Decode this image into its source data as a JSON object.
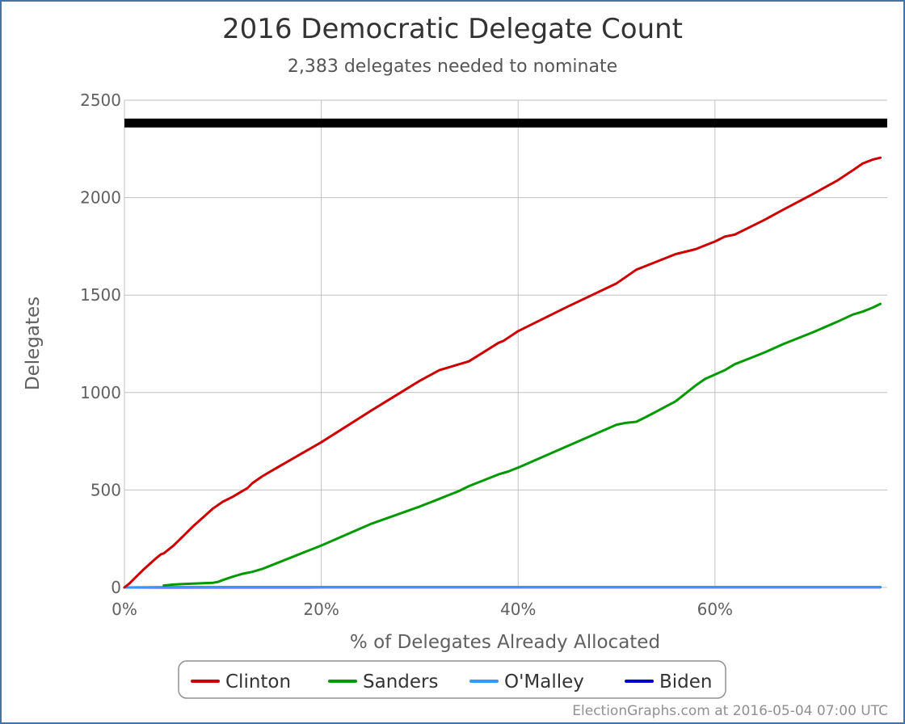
{
  "chart_data": {
    "type": "line",
    "title": "2016 Democratic Delegate Count",
    "subtitle": "2,383 delegates needed to nominate",
    "xlabel": "% of Delegates Already Allocated",
    "ylabel": "Delegates",
    "xlim": [
      0,
      77.5
    ],
    "ylim": [
      0,
      2500
    ],
    "x_ticks": [
      {
        "value": 0,
        "label": "0%"
      },
      {
        "value": 20,
        "label": "20%"
      },
      {
        "value": 40,
        "label": "40%"
      },
      {
        "value": 60,
        "label": "60%"
      }
    ],
    "y_ticks": [
      {
        "value": 0,
        "label": "0"
      },
      {
        "value": 500,
        "label": "500"
      },
      {
        "value": 1000,
        "label": "1000"
      },
      {
        "value": 1500,
        "label": "1500"
      },
      {
        "value": 2000,
        "label": "2000"
      },
      {
        "value": 2500,
        "label": "2500"
      }
    ],
    "grid": {
      "x": true,
      "y": true
    },
    "threshold": 2383,
    "threshold_color": "#000000",
    "legend_position": "bottom-center",
    "series": [
      {
        "name": "Clinton",
        "color": "#cc0000",
        "points": [
          [
            0,
            0
          ],
          [
            0.5,
            20
          ],
          [
            1,
            45
          ],
          [
            2,
            95
          ],
          [
            3,
            140
          ],
          [
            3.7,
            170
          ],
          [
            4,
            175
          ],
          [
            5,
            215
          ],
          [
            6,
            265
          ],
          [
            7,
            315
          ],
          [
            8,
            360
          ],
          [
            9,
            405
          ],
          [
            10,
            440
          ],
          [
            11,
            465
          ],
          [
            12,
            495
          ],
          [
            12.5,
            510
          ],
          [
            13,
            535
          ],
          [
            14,
            570
          ],
          [
            15,
            600
          ],
          [
            20,
            745
          ],
          [
            25,
            905
          ],
          [
            30,
            1060
          ],
          [
            32,
            1115
          ],
          [
            34,
            1145
          ],
          [
            35,
            1160
          ],
          [
            38,
            1255
          ],
          [
            38.5,
            1265
          ],
          [
            40,
            1315
          ],
          [
            45,
            1440
          ],
          [
            50,
            1560
          ],
          [
            52,
            1630
          ],
          [
            53,
            1650
          ],
          [
            56,
            1710
          ],
          [
            58,
            1735
          ],
          [
            60,
            1775
          ],
          [
            61,
            1800
          ],
          [
            62,
            1810
          ],
          [
            65,
            1885
          ],
          [
            67,
            1940
          ],
          [
            70,
            2020
          ],
          [
            72.5,
            2090
          ],
          [
            74,
            2140
          ],
          [
            75,
            2175
          ],
          [
            76,
            2195
          ],
          [
            76.8,
            2205
          ]
        ]
      },
      {
        "name": "Sanders",
        "color": "#009900",
        "points": [
          [
            4,
            10
          ],
          [
            5,
            15
          ],
          [
            6,
            18
          ],
          [
            7,
            20
          ],
          [
            8,
            22
          ],
          [
            9,
            24
          ],
          [
            9.5,
            28
          ],
          [
            10,
            38
          ],
          [
            11,
            55
          ],
          [
            12,
            70
          ],
          [
            13,
            80
          ],
          [
            14,
            95
          ],
          [
            15,
            115
          ],
          [
            20,
            215
          ],
          [
            25,
            325
          ],
          [
            30,
            415
          ],
          [
            32,
            455
          ],
          [
            34,
            495
          ],
          [
            35,
            520
          ],
          [
            38,
            580
          ],
          [
            39,
            595
          ],
          [
            40,
            615
          ],
          [
            45,
            725
          ],
          [
            50,
            835
          ],
          [
            51,
            845
          ],
          [
            52,
            850
          ],
          [
            53,
            875
          ],
          [
            56,
            955
          ],
          [
            58,
            1035
          ],
          [
            59,
            1070
          ],
          [
            61,
            1115
          ],
          [
            62,
            1145
          ],
          [
            63,
            1165
          ],
          [
            65,
            1205
          ],
          [
            67,
            1250
          ],
          [
            70,
            1310
          ],
          [
            72.5,
            1365
          ],
          [
            74,
            1400
          ],
          [
            75,
            1415
          ],
          [
            76,
            1435
          ],
          [
            76.8,
            1455
          ]
        ]
      },
      {
        "name": "O'Malley",
        "color": "#3399ff",
        "points": [
          [
            0,
            0
          ],
          [
            5,
            2
          ],
          [
            10,
            2
          ],
          [
            20,
            2
          ],
          [
            40,
            2
          ],
          [
            60,
            2
          ],
          [
            76.8,
            2
          ]
        ]
      },
      {
        "name": "Biden",
        "color": "#0000cc",
        "points": [
          [
            0,
            0
          ],
          [
            20,
            1
          ],
          [
            40,
            1
          ],
          [
            60,
            1
          ],
          [
            76.8,
            1
          ]
        ]
      }
    ]
  },
  "credit": "ElectionGraphs.com at 2016-05-04 07:00 UTC"
}
